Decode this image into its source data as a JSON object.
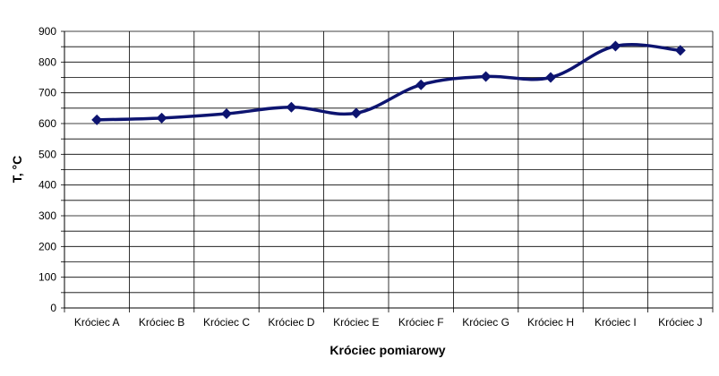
{
  "chart_data": {
    "type": "line",
    "title": "",
    "xlabel": "Króciec pomiarowy",
    "ylabel": "T, °C",
    "categories": [
      "Króciec A",
      "Króciec B",
      "Króciec C",
      "Króciec D",
      "Króciec E",
      "Króciec F",
      "Króciec G",
      "Króciec H",
      "Króciec I",
      "Króciec J"
    ],
    "series": [
      {
        "values": [
          612,
          618,
          632,
          653,
          634,
          726,
          753,
          750,
          852,
          838
        ],
        "color": "#0d1470"
      }
    ],
    "ylim": [
      0,
      900
    ],
    "yticks": [
      0,
      100,
      200,
      300,
      400,
      500,
      600,
      700,
      800,
      900
    ],
    "grid": true,
    "legend": "none",
    "marker": "diamond"
  }
}
